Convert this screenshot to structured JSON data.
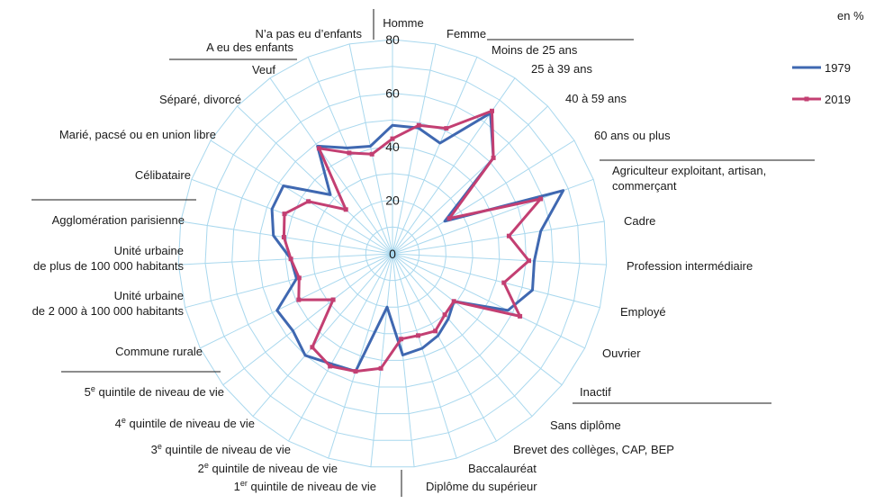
{
  "chart_data": {
    "type": "radar",
    "unit": "en %",
    "rlim": [
      0,
      80
    ],
    "ticks": [
      "0",
      "20",
      "40",
      "60",
      "80"
    ],
    "tick_values": [
      0,
      20,
      40,
      60,
      80
    ],
    "grid": true,
    "legend_position": "top-right",
    "categories": [
      "Homme",
      "Femme",
      "Moins de 25 ans",
      "25 à 39 ans",
      "40 à 59 ans",
      "60 ans ou plus",
      "Agriculteur exploitant, artisan, commerçant",
      "Cadre",
      "Profession intermédiaire",
      "Employé",
      "Ouvrier",
      "Inactif",
      "Sans diplôme",
      "Brevet des collèges, CAP, BEP",
      "Baccalauréat",
      "Diplôme du supérieur",
      "1er quintile de niveau de vie",
      "2e quintile de niveau de vie",
      "3e quintile de niveau de vie",
      "4e quintile de niveau de vie",
      "5e quintile de niveau de vie",
      "Commune rurale",
      "Unité urbaine de 2 000 à 100 000 habitants",
      "Unité urbaine de plus de 100 000 habitants",
      "Agglomération parisienne",
      "Célibataire",
      "Marié, pacsé ou en union libre",
      "Séparé, divorcé",
      "Veuf",
      "A eu des enfants",
      "N'a pas eu d'enfants"
    ],
    "series": [
      {
        "name": "1979",
        "color": "#3f68b1",
        "values": [
          48,
          48,
          45,
          64,
          52,
          23,
          68,
          56,
          53,
          54,
          48,
          29,
          32,
          35,
          37,
          38,
          20,
          46,
          47,
          50,
          47,
          48,
          37,
          38,
          45,
          48,
          48,
          32,
          49,
          43,
          41
        ]
      },
      {
        "name": "2019",
        "color": "#c33f72",
        "values": [
          43,
          49,
          51,
          65,
          52,
          25,
          59,
          44,
          51,
          43,
          53,
          29,
          30,
          33,
          32,
          32,
          43,
          46,
          48,
          46,
          28,
          39,
          36,
          38,
          41,
          43,
          37,
          24,
          48,
          41,
          38
        ]
      }
    ]
  },
  "labels": [
    {
      "lines": [
        "Homme"
      ]
    },
    {
      "lines": [
        "Femme"
      ]
    },
    {
      "lines": [
        "Moins de 25 ans"
      ]
    },
    {
      "lines": [
        "25 à 39 ans"
      ]
    },
    {
      "lines": [
        "40 à 59 ans"
      ]
    },
    {
      "lines": [
        "60 ans ou plus"
      ]
    },
    {
      "lines": [
        "Agriculteur exploitant, artisan,",
        "commerçant"
      ]
    },
    {
      "lines": [
        "Cadre"
      ]
    },
    {
      "lines": [
        "Profession intermédiaire"
      ]
    },
    {
      "lines": [
        "Employé"
      ]
    },
    {
      "lines": [
        "Ouvrier"
      ]
    },
    {
      "lines": [
        "Inactif"
      ]
    },
    {
      "lines": [
        "Sans diplôme"
      ]
    },
    {
      "lines": [
        "Brevet des collèges, CAP, BEP"
      ]
    },
    {
      "lines": [
        "Baccalauréat"
      ]
    },
    {
      "lines": [
        "Diplôme du supérieur"
      ]
    },
    {
      "lines": [
        "1",
        "er",
        " quintile de niveau de vie"
      ]
    },
    {
      "lines": [
        "2",
        "e",
        " quintile de niveau de vie"
      ]
    },
    {
      "lines": [
        "3",
        "e",
        " quintile de niveau de vie"
      ]
    },
    {
      "lines": [
        "4",
        "e",
        " quintile de niveau de vie"
      ]
    },
    {
      "lines": [
        "5",
        "e",
        " quintile de niveau de vie"
      ]
    },
    {
      "lines": [
        "Commune rurale"
      ]
    },
    {
      "lines": [
        "Unité urbaine",
        "de 2 000 à 100 000 habitants"
      ]
    },
    {
      "lines": [
        "Unité urbaine",
        "de plus de 100 000 habitants"
      ]
    },
    {
      "lines": [
        "Agglomération parisienne"
      ]
    },
    {
      "lines": [
        "Célibataire"
      ]
    },
    {
      "lines": [
        "Marié, pacsé ou en union libre"
      ]
    },
    {
      "lines": [
        "Séparé, divorcé"
      ]
    },
    {
      "lines": [
        "Veuf"
      ]
    },
    {
      "lines": [
        "A eu des enfants"
      ]
    },
    {
      "lines": [
        "N’a pas eu d’enfants"
      ]
    }
  ],
  "colors": {
    "grid": "#a9d8ee",
    "grid_center": "#cfe9f6",
    "separator": "#1a1a1a"
  }
}
